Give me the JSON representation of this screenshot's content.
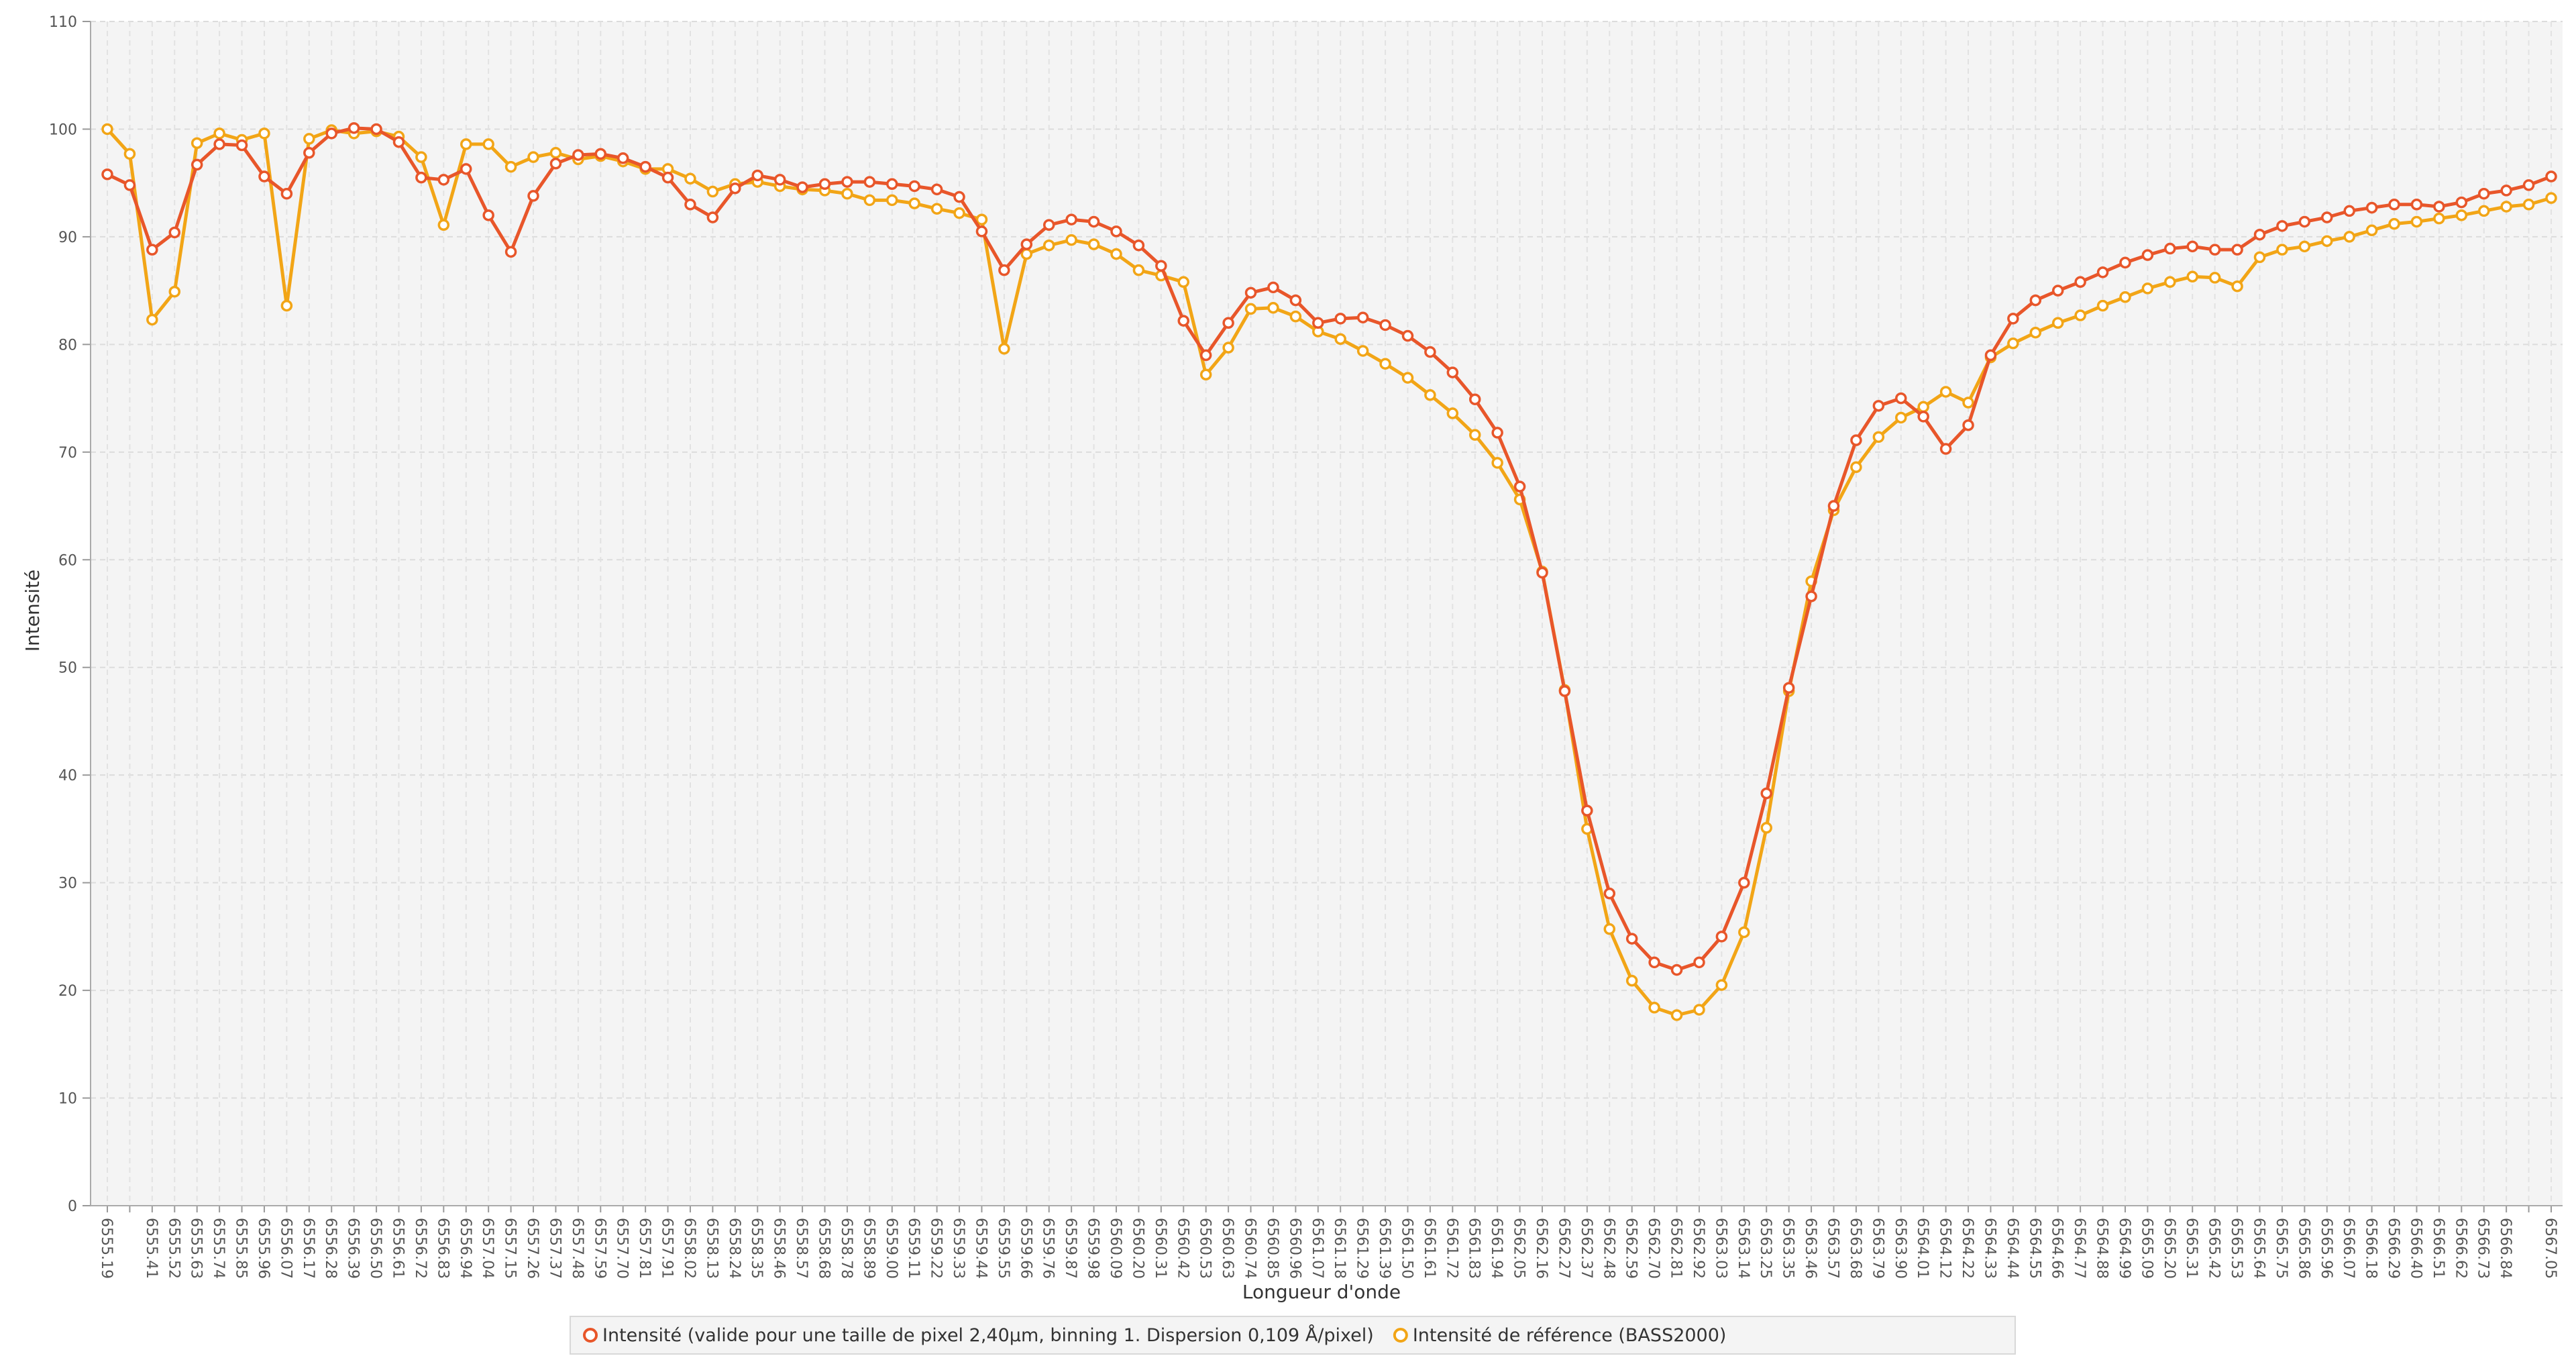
{
  "chart_data": {
    "type": "line",
    "xlabel": "Longueur d'onde",
    "ylabel": "Intensité",
    "ylim": [
      0,
      110
    ],
    "yticks": [
      0,
      10,
      20,
      30,
      40,
      50,
      60,
      70,
      80,
      90,
      100,
      110
    ],
    "grid": true,
    "categories": [
      "6555.19",
      null,
      "6555.41",
      "6555.52",
      "6555.63",
      "6555.74",
      "6555.85",
      "6555.96",
      "6556.07",
      "6556.17",
      "6556.28",
      "6556.39",
      "6556.50",
      "6556.61",
      "6556.72",
      "6556.83",
      "6556.94",
      "6557.04",
      "6557.15",
      "6557.26",
      "6557.37",
      "6557.48",
      "6557.59",
      "6557.70",
      "6557.81",
      "6557.91",
      "6558.02",
      "6558.13",
      "6558.24",
      "6558.35",
      "6558.46",
      "6558.57",
      "6558.68",
      "6558.78",
      "6558.89",
      "6559.00",
      "6559.11",
      "6559.22",
      "6559.33",
      "6559.44",
      "6559.55",
      "6559.66",
      "6559.76",
      "6559.87",
      "6559.98",
      "6560.09",
      "6560.20",
      "6560.31",
      "6560.42",
      "6560.53",
      "6560.63",
      "6560.74",
      "6560.85",
      "6560.96",
      "6561.07",
      "6561.18",
      "6561.29",
      "6561.39",
      "6561.50",
      "6561.61",
      "6561.72",
      "6561.83",
      "6561.94",
      "6562.05",
      "6562.16",
      "6562.27",
      "6562.37",
      "6562.48",
      "6562.59",
      "6562.70",
      "6562.81",
      "6562.92",
      "6563.03",
      "6563.14",
      "6563.25",
      "6563.35",
      "6563.46",
      "6563.57",
      "6563.68",
      "6563.79",
      "6563.90",
      "6564.01",
      "6564.12",
      "6564.22",
      "6564.33",
      "6564.44",
      "6564.55",
      "6564.66",
      "6564.77",
      "6564.88",
      "6564.99",
      "6565.09",
      "6565.20",
      "6565.31",
      "6565.42",
      "6565.53",
      "6565.64",
      "6565.75",
      "6565.86",
      "6565.96",
      "6566.07",
      "6566.18",
      "6566.29",
      "6566.40",
      "6566.51",
      "6566.62",
      "6566.73",
      "6566.84",
      null,
      "6567.05"
    ],
    "series": [
      {
        "name": "Intensité (valide pour une taille de pixel 2,40µm, binning 1. Dispersion 0,109 Å/pixel)",
        "color": "#e8562a",
        "values": [
          95.8,
          94.8,
          88.8,
          90.4,
          96.7,
          98.6,
          98.5,
          95.6,
          94.0,
          97.8,
          99.6,
          100.1,
          100.0,
          98.8,
          95.5,
          95.3,
          96.3,
          92.0,
          88.6,
          93.8,
          96.8,
          97.6,
          97.7,
          97.3,
          96.5,
          95.5,
          93.0,
          91.8,
          94.5,
          95.7,
          95.3,
          94.6,
          94.9,
          95.1,
          95.1,
          94.9,
          94.7,
          94.4,
          93.7,
          90.5,
          86.9,
          89.3,
          91.1,
          91.6,
          91.4,
          90.5,
          89.2,
          87.3,
          82.2,
          79.0,
          82.0,
          84.8,
          85.3,
          84.1,
          82.0,
          82.4,
          82.5,
          81.8,
          80.8,
          79.3,
          77.4,
          74.9,
          71.8,
          66.8,
          58.8,
          47.8,
          36.7,
          29.0,
          24.8,
          22.6,
          21.9,
          22.6,
          25.0,
          30.0,
          38.3,
          48.1,
          56.6,
          65.0,
          71.1,
          74.3,
          75.0,
          73.3,
          70.3,
          72.5,
          79.0,
          82.4,
          84.1,
          85.0,
          85.8,
          86.7,
          87.6,
          88.3,
          88.9,
          89.1,
          88.8,
          88.8,
          90.2,
          91.0,
          91.4,
          91.8,
          92.4,
          92.7,
          93.0,
          93.0,
          92.8,
          93.2,
          94.0,
          94.3,
          94.8,
          95.6
        ]
      },
      {
        "name": "Intensité de référence (BASS2000)",
        "color": "#f2a516",
        "values": [
          100.0,
          97.7,
          82.3,
          84.9,
          98.7,
          99.6,
          99.0,
          99.6,
          83.6,
          99.1,
          99.9,
          99.6,
          99.8,
          99.3,
          97.4,
          91.1,
          98.6,
          98.6,
          96.5,
          97.4,
          97.8,
          97.2,
          97.5,
          97.0,
          96.3,
          96.3,
          95.4,
          94.2,
          94.9,
          95.1,
          94.7,
          94.4,
          94.3,
          94.0,
          93.4,
          93.4,
          93.1,
          92.6,
          92.2,
          91.6,
          79.6,
          88.4,
          89.2,
          89.7,
          89.3,
          88.4,
          86.9,
          86.4,
          85.8,
          77.2,
          79.7,
          83.3,
          83.4,
          82.6,
          81.2,
          80.5,
          79.4,
          78.2,
          76.9,
          75.3,
          73.6,
          71.6,
          69.0,
          65.6,
          58.9,
          47.9,
          35.0,
          25.7,
          20.9,
          18.4,
          17.7,
          18.2,
          20.5,
          25.4,
          35.1,
          47.8,
          58.0,
          64.6,
          68.6,
          71.4,
          73.2,
          74.2,
          75.6,
          74.6,
          78.8,
          80.1,
          81.1,
          82.0,
          82.7,
          83.6,
          84.4,
          85.2,
          85.8,
          86.3,
          86.2,
          85.4,
          88.1,
          88.8,
          89.1,
          89.6,
          90.0,
          90.6,
          91.2,
          91.4,
          91.7,
          92.0,
          92.4,
          92.8,
          93.0,
          93.6
        ]
      }
    ]
  }
}
